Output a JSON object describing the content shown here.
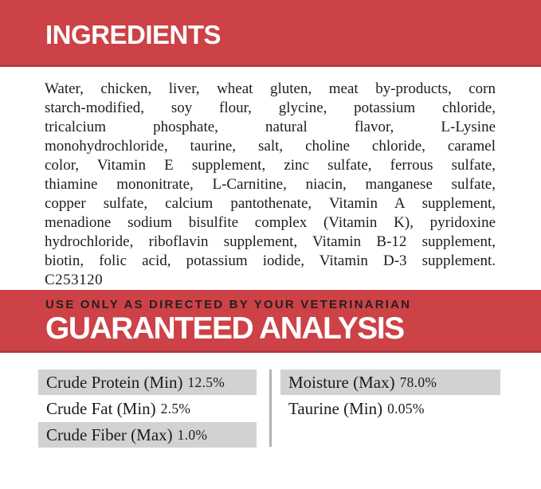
{
  "colors": {
    "banner_red": "#cc4247",
    "banner_edge_red": "#b2393f",
    "banner_kicker_text": "#251f1e",
    "banner_title_text": "#ffffff",
    "body_text": "#1e1c1c",
    "row_shaded_gray": "#d3d2d1",
    "divider_gray": "#b2b2b2"
  },
  "ingredients_section": {
    "title": "INGREDIENTS",
    "lines": [
      "Water, chicken, liver, wheat gluten, meat by-products, corn",
      "starch-modified, soy flour, glycine, potassium chloride,",
      "tricalcium phosphate, natural flavor, L-Lysine",
      "monohydrochloride, taurine, salt, choline chloride, caramel",
      "color, Vitamin E supplement, zinc sulfate, ferrous sulfate,",
      "thiamine mononitrate, L-Carnitine, niacin, manganese sulfate,",
      "copper sulfate, calcium pantothenate, Vitamin A supplement,",
      "menadione sodium bisulfite complex (Vitamin K), pyridoxine",
      "hydrochloride, riboflavin supplement, Vitamin B-12 supplement,",
      "biotin, folic acid, potassium iodide, Vitamin D-3 supplement.",
      "C253120"
    ]
  },
  "analysis_section": {
    "kicker": "USE ONLY AS DIRECTED BY YOUR VETERINARIAN",
    "title": "GUARANTEED ANALYSIS",
    "left_column": [
      {
        "label": "Crude Protein (Min)",
        "value": "12.5%",
        "shaded": true
      },
      {
        "label": "Crude Fat (Min)",
        "value": "2.5%",
        "shaded": false
      },
      {
        "label": "Crude Fiber (Max)",
        "value": "1.0%",
        "shaded": true
      }
    ],
    "right_column": [
      {
        "label": "Moisture (Max)",
        "value": "78.0%",
        "shaded": true
      },
      {
        "label": "Taurine (Min)",
        "value": "0.05%",
        "shaded": false
      }
    ]
  }
}
